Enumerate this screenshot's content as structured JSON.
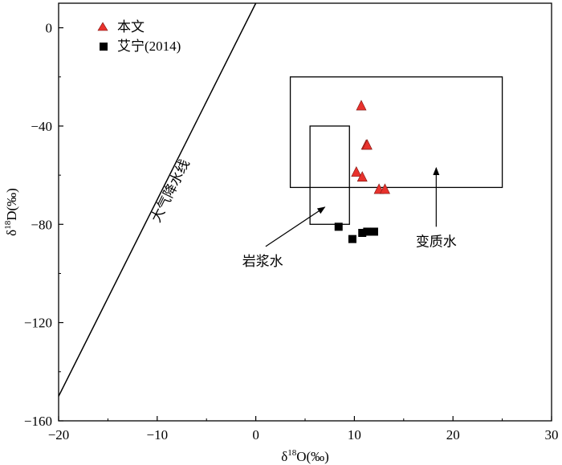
{
  "chart_data": {
    "type": "scatter",
    "title": "",
    "xlabel": "δ18O(‰)",
    "xlabel_main": "δ",
    "xlabel_sup": "18",
    "xlabel_rest": "O(‰)",
    "ylabel": "δ18D(‰)",
    "ylabel_main": "δ",
    "ylabel_sup": "18",
    "ylabel_rest": "D(‰)",
    "xlim": [
      -20,
      30
    ],
    "ylim": [
      -160,
      10
    ],
    "xticks": [
      -20,
      -10,
      0,
      10,
      20,
      30
    ],
    "xtick_labels": [
      "−20",
      "−10",
      "0",
      "10",
      "20",
      "30"
    ],
    "yticks": [
      0,
      -40,
      -80,
      -120,
      -160
    ],
    "ytick_labels": [
      "0",
      "−40",
      "−80",
      "−120",
      "−160"
    ],
    "grid": false,
    "legend_position": "top-left",
    "series": [
      {
        "name": "本文",
        "marker": "triangle",
        "color": "#e8322d",
        "points": [
          {
            "x": 10.7,
            "y": -32
          },
          {
            "x": 11.2,
            "y": -48
          },
          {
            "x": 11.3,
            "y": -48
          },
          {
            "x": 10.2,
            "y": -59
          },
          {
            "x": 10.8,
            "y": -61
          },
          {
            "x": 12.5,
            "y": -66
          },
          {
            "x": 13.1,
            "y": -66
          }
        ]
      },
      {
        "name": "艾宁(2014)",
        "marker": "square",
        "color": "#000000",
        "points": [
          {
            "x": 8.4,
            "y": -81
          },
          {
            "x": 9.8,
            "y": -86
          },
          {
            "x": 10.8,
            "y": -83.5
          },
          {
            "x": 11.3,
            "y": -83
          },
          {
            "x": 12.0,
            "y": -83
          }
        ]
      }
    ],
    "meteoric_line": {
      "label": "大气降水线",
      "x_start": -20,
      "y_start": -150,
      "x_end": 0,
      "y_end": 10
    },
    "regions": [
      {
        "label": "岩浆水",
        "x0": 5.5,
        "x1": 9.5,
        "y0": -80,
        "y1": -40
      },
      {
        "label": "变质水",
        "x0": 3.5,
        "x1": 25,
        "y0": -65,
        "y1": -20
      }
    ],
    "annotations": [
      {
        "text": "岩浆水",
        "text_x": 0.7,
        "text_y": -95,
        "arrow_from_x": 1,
        "arrow_from_y": -89,
        "arrow_to_x": 7,
        "arrow_to_y": -73
      },
      {
        "text": "变质水",
        "text_x": 18.3,
        "text_y": -87,
        "arrow_from_x": 18.3,
        "arrow_from_y": -81,
        "arrow_to_x": 18.3,
        "arrow_to_y": -57
      }
    ]
  }
}
